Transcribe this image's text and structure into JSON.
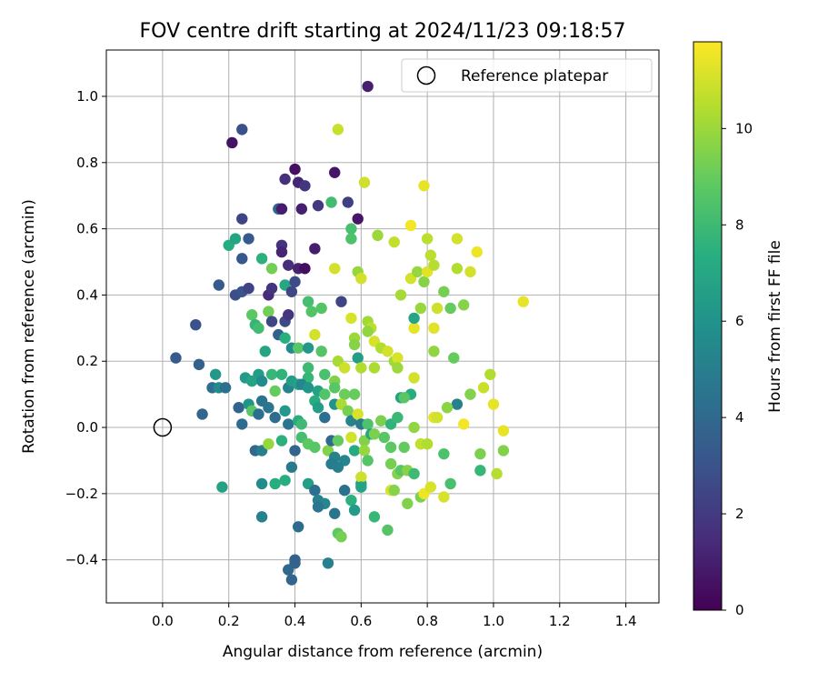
{
  "chart_data": {
    "type": "scatter",
    "title": "FOV centre drift starting at 2024/11/23 09:18:57",
    "xlabel": "Angular distance from reference (arcmin)",
    "ylabel": "Rotation from reference (arcmin)",
    "xlim": [
      -0.17,
      1.5
    ],
    "ylim": [
      -0.53,
      1.14
    ],
    "xticks": [
      0.0,
      0.2,
      0.4,
      0.6,
      0.8,
      1.0,
      1.2,
      1.4
    ],
    "xtick_labels": [
      "0.0",
      "0.2",
      "0.4",
      "0.6",
      "0.8",
      "1.0",
      "1.2",
      "1.4"
    ],
    "yticks": [
      -0.4,
      -0.2,
      0.0,
      0.2,
      0.4,
      0.6,
      0.8,
      1.0
    ],
    "ytick_labels": [
      "−0.4",
      "−0.2",
      "0.0",
      "0.2",
      "0.4",
      "0.6",
      "0.8",
      "1.0"
    ],
    "grid": true,
    "legend": {
      "placement": "top-right",
      "entries": [
        "Reference platepar"
      ]
    },
    "reference_point": {
      "x": 0.0,
      "y": 0.0,
      "label": "Reference platepar"
    },
    "colorbar": {
      "label": "Hours from first FF file",
      "range": [
        0,
        11.8
      ],
      "ticks": [
        0,
        2,
        4,
        6,
        8,
        10
      ],
      "tick_labels": [
        "0",
        "2",
        "4",
        "6",
        "8",
        "10"
      ],
      "colormap": "viridis"
    },
    "points": [
      [
        0.62,
        1.03,
        1.0
      ],
      [
        0.21,
        0.86,
        0.6
      ],
      [
        0.24,
        0.9,
        2.9
      ],
      [
        0.53,
        0.9,
        10.8
      ],
      [
        0.4,
        0.78,
        0.5
      ],
      [
        0.52,
        0.77,
        0.7
      ],
      [
        0.37,
        0.75,
        1.6
      ],
      [
        0.41,
        0.74,
        1.2
      ],
      [
        0.43,
        0.73,
        1.8
      ],
      [
        0.61,
        0.74,
        10.9
      ],
      [
        0.79,
        0.73,
        11.4
      ],
      [
        0.47,
        0.67,
        1.9
      ],
      [
        0.51,
        0.68,
        8.1
      ],
      [
        0.56,
        0.68,
        2.2
      ],
      [
        0.35,
        0.66,
        4.0
      ],
      [
        0.36,
        0.66,
        0.9
      ],
      [
        0.42,
        0.66,
        1.0
      ],
      [
        0.59,
        0.63,
        0.7
      ],
      [
        0.24,
        0.63,
        2.4
      ],
      [
        0.57,
        0.6,
        8.3
      ],
      [
        0.75,
        0.61,
        11.6
      ],
      [
        0.57,
        0.57,
        8.4
      ],
      [
        0.2,
        0.55,
        7.2
      ],
      [
        0.22,
        0.57,
        6.9
      ],
      [
        0.26,
        0.57,
        3.3
      ],
      [
        0.36,
        0.55,
        1.7
      ],
      [
        0.36,
        0.53,
        1.2
      ],
      [
        0.46,
        0.54,
        0.9
      ],
      [
        0.65,
        0.58,
        10.0
      ],
      [
        0.7,
        0.56,
        10.7
      ],
      [
        0.8,
        0.57,
        10.6
      ],
      [
        0.81,
        0.52,
        10.6
      ],
      [
        0.89,
        0.57,
        11.0
      ],
      [
        0.95,
        0.53,
        11.5
      ],
      [
        0.24,
        0.51,
        3.2
      ],
      [
        0.3,
        0.51,
        7.5
      ],
      [
        0.33,
        0.48,
        9.2
      ],
      [
        0.38,
        0.49,
        1.6
      ],
      [
        0.41,
        0.48,
        1.1
      ],
      [
        0.43,
        0.48,
        0.4
      ],
      [
        0.52,
        0.48,
        11.0
      ],
      [
        0.59,
        0.47,
        9.9
      ],
      [
        0.6,
        0.45,
        11.0
      ],
      [
        0.75,
        0.45,
        11.0
      ],
      [
        0.77,
        0.47,
        9.9
      ],
      [
        0.79,
        0.44,
        9.6
      ],
      [
        0.8,
        0.47,
        11.3
      ],
      [
        0.82,
        0.49,
        10.5
      ],
      [
        0.89,
        0.48,
        10.4
      ],
      [
        0.93,
        0.47,
        11.0
      ],
      [
        0.17,
        0.43,
        3.3
      ],
      [
        0.22,
        0.4,
        2.8
      ],
      [
        0.24,
        0.41,
        3.0
      ],
      [
        0.26,
        0.42,
        2.4
      ],
      [
        0.32,
        0.4,
        1.4
      ],
      [
        0.33,
        0.42,
        1.8
      ],
      [
        0.37,
        0.43,
        7.0
      ],
      [
        0.39,
        0.41,
        2.5
      ],
      [
        0.4,
        0.44,
        2.7
      ],
      [
        0.44,
        0.38,
        8.2
      ],
      [
        0.48,
        0.36,
        8.6
      ],
      [
        0.54,
        0.38,
        2.4
      ],
      [
        0.72,
        0.4,
        10.2
      ],
      [
        0.78,
        0.36,
        9.9
      ],
      [
        0.83,
        0.36,
        10.9
      ],
      [
        0.85,
        0.41,
        9.3
      ],
      [
        0.87,
        0.36,
        9.0
      ],
      [
        0.91,
        0.37,
        9.6
      ],
      [
        1.09,
        0.38,
        11.4
      ],
      [
        0.1,
        0.31,
        3.0
      ],
      [
        0.27,
        0.34,
        8.8
      ],
      [
        0.32,
        0.35,
        9.2
      ],
      [
        0.33,
        0.32,
        2.5
      ],
      [
        0.37,
        0.32,
        2.5
      ],
      [
        0.38,
        0.34,
        1.8
      ],
      [
        0.45,
        0.35,
        8.5
      ],
      [
        0.57,
        0.33,
        11.1
      ],
      [
        0.62,
        0.32,
        10.1
      ],
      [
        0.63,
        0.3,
        10.6
      ],
      [
        0.28,
        0.31,
        7.7
      ],
      [
        0.29,
        0.3,
        8.1
      ],
      [
        0.35,
        0.28,
        3.6
      ],
      [
        0.37,
        0.27,
        7.4
      ],
      [
        0.39,
        0.24,
        5.6
      ],
      [
        0.41,
        0.24,
        8.7
      ],
      [
        0.44,
        0.24,
        6.2
      ],
      [
        0.46,
        0.28,
        11.0
      ],
      [
        0.48,
        0.23,
        8.6
      ],
      [
        0.53,
        0.2,
        10.2
      ],
      [
        0.58,
        0.27,
        10.0
      ],
      [
        0.58,
        0.25,
        9.6
      ],
      [
        0.59,
        0.21,
        6.5
      ],
      [
        0.62,
        0.29,
        9.8
      ],
      [
        0.64,
        0.26,
        11.1
      ],
      [
        0.66,
        0.24,
        10.4
      ],
      [
        0.68,
        0.23,
        11.0
      ],
      [
        0.7,
        0.2,
        10.1
      ],
      [
        0.71,
        0.21,
        11.1
      ],
      [
        0.76,
        0.3,
        11.4
      ],
      [
        0.76,
        0.33,
        6.8
      ],
      [
        0.82,
        0.3,
        11.3
      ],
      [
        0.82,
        0.23,
        9.8
      ],
      [
        0.88,
        0.21,
        9.0
      ],
      [
        0.04,
        0.21,
        3.3
      ],
      [
        0.11,
        0.19,
        3.6
      ],
      [
        0.16,
        0.16,
        6.2
      ],
      [
        0.25,
        0.15,
        6.3
      ],
      [
        0.29,
        0.16,
        6.5
      ],
      [
        0.31,
        0.23,
        6.9
      ],
      [
        0.33,
        0.16,
        7.8
      ],
      [
        0.36,
        0.16,
        7.6
      ],
      [
        0.38,
        0.12,
        5.2
      ],
      [
        0.39,
        0.14,
        6.5
      ],
      [
        0.41,
        0.13,
        6.7
      ],
      [
        0.44,
        0.18,
        8.0
      ],
      [
        0.44,
        0.15,
        7.8
      ],
      [
        0.49,
        0.16,
        8.3
      ],
      [
        0.52,
        0.14,
        9.5
      ],
      [
        0.55,
        0.18,
        10.9
      ],
      [
        0.6,
        0.18,
        10.4
      ],
      [
        0.64,
        0.18,
        10.3
      ],
      [
        0.71,
        0.18,
        10.0
      ],
      [
        0.76,
        0.15,
        11.0
      ],
      [
        0.99,
        0.16,
        10.4
      ],
      [
        0.15,
        0.12,
        4.2
      ],
      [
        0.17,
        0.12,
        5.5
      ],
      [
        0.19,
        0.12,
        4.3
      ],
      [
        0.27,
        0.14,
        6.8
      ],
      [
        0.3,
        0.14,
        5.6
      ],
      [
        0.34,
        0.11,
        9.0
      ],
      [
        0.42,
        0.13,
        5.4
      ],
      [
        0.44,
        0.12,
        6.1
      ],
      [
        0.47,
        0.11,
        6.7
      ],
      [
        0.49,
        0.1,
        8.5
      ],
      [
        0.52,
        0.12,
        8.7
      ],
      [
        0.55,
        0.1,
        9.1
      ],
      [
        0.58,
        0.1,
        9.0
      ],
      [
        0.72,
        0.09,
        6.8
      ],
      [
        0.75,
        0.1,
        7.3
      ],
      [
        0.89,
        0.07,
        5.1
      ],
      [
        0.93,
        0.1,
        9.5
      ],
      [
        0.97,
        0.12,
        10.8
      ],
      [
        0.23,
        0.06,
        3.8
      ],
      [
        0.26,
        0.07,
        6.1
      ],
      [
        0.27,
        0.05,
        8.7
      ],
      [
        0.29,
        0.04,
        4.3
      ],
      [
        0.3,
        0.08,
        4.5
      ],
      [
        0.32,
        0.06,
        4.6
      ],
      [
        0.34,
        0.03,
        4.2
      ],
      [
        0.37,
        0.05,
        6.3
      ],
      [
        0.38,
        0.01,
        4.6
      ],
      [
        0.41,
        0.02,
        7.2
      ],
      [
        0.42,
        0.01,
        8.0
      ],
      [
        0.42,
        -0.03,
        8.2
      ],
      [
        0.46,
        0.08,
        7.2
      ],
      [
        0.47,
        0.06,
        6.5
      ],
      [
        0.49,
        0.03,
        4.3
      ],
      [
        0.52,
        0.07,
        6.0
      ],
      [
        0.54,
        0.07,
        10.3
      ],
      [
        0.56,
        0.05,
        9.3
      ],
      [
        0.57,
        0.02,
        5.2
      ],
      [
        0.59,
        0.04,
        11.1
      ],
      [
        0.6,
        0.01,
        4.8
      ],
      [
        0.62,
        0.01,
        8.4
      ],
      [
        0.66,
        0.02,
        9.4
      ],
      [
        0.69,
        0.01,
        7.6
      ],
      [
        0.71,
        0.03,
        7.9
      ],
      [
        0.73,
        0.09,
        8.7
      ],
      [
        0.76,
        0.0,
        9.8
      ],
      [
        0.82,
        0.03,
        11.3
      ],
      [
        0.83,
        0.03,
        11.0
      ],
      [
        0.86,
        0.06,
        9.7
      ],
      [
        0.91,
        0.01,
        11.6
      ],
      [
        1.0,
        0.07,
        11.4
      ],
      [
        1.03,
        -0.01,
        11.4
      ],
      [
        0.12,
        0.04,
        3.9
      ],
      [
        0.24,
        0.01,
        4.1
      ],
      [
        0.28,
        -0.07,
        4.0
      ],
      [
        0.3,
        -0.07,
        5.0
      ],
      [
        0.32,
        -0.05,
        9.9
      ],
      [
        0.36,
        -0.04,
        7.5
      ],
      [
        0.4,
        -0.07,
        3.8
      ],
      [
        0.44,
        -0.05,
        8.8
      ],
      [
        0.46,
        -0.06,
        8.7
      ],
      [
        0.5,
        -0.07,
        9.5
      ],
      [
        0.51,
        -0.04,
        4.0
      ],
      [
        0.52,
        -0.09,
        5.2
      ],
      [
        0.53,
        -0.04,
        8.9
      ],
      [
        0.55,
        -0.1,
        5.4
      ],
      [
        0.57,
        -0.03,
        11.0
      ],
      [
        0.58,
        -0.07,
        7.1
      ],
      [
        0.61,
        -0.04,
        9.5
      ],
      [
        0.61,
        -0.07,
        9.9
      ],
      [
        0.63,
        -0.02,
        6.9
      ],
      [
        0.64,
        -0.02,
        9.4
      ],
      [
        0.67,
        -0.03,
        8.7
      ],
      [
        0.69,
        -0.06,
        8.8
      ],
      [
        0.73,
        -0.06,
        8.9
      ],
      [
        0.78,
        -0.05,
        10.7
      ],
      [
        0.8,
        -0.05,
        10.4
      ],
      [
        0.85,
        -0.08,
        8.4
      ],
      [
        0.96,
        -0.08,
        9.4
      ],
      [
        0.96,
        -0.13,
        7.8
      ],
      [
        1.01,
        -0.14,
        10.5
      ],
      [
        1.03,
        -0.07,
        9.5
      ],
      [
        0.18,
        -0.18,
        6.7
      ],
      [
        0.3,
        -0.17,
        5.6
      ],
      [
        0.34,
        -0.17,
        7.3
      ],
      [
        0.37,
        -0.16,
        7.3
      ],
      [
        0.39,
        -0.12,
        4.8
      ],
      [
        0.44,
        -0.17,
        6.6
      ],
      [
        0.46,
        -0.19,
        4.3
      ],
      [
        0.47,
        -0.22,
        5.1
      ],
      [
        0.49,
        -0.23,
        5.4
      ],
      [
        0.51,
        -0.11,
        4.9
      ],
      [
        0.53,
        -0.12,
        5.0
      ],
      [
        0.55,
        -0.19,
        4.4
      ],
      [
        0.57,
        -0.22,
        7.5
      ],
      [
        0.6,
        -0.17,
        6.7
      ],
      [
        0.6,
        -0.15,
        10.9
      ],
      [
        0.6,
        -0.18,
        6.8
      ],
      [
        0.62,
        -0.1,
        8.6
      ],
      [
        0.69,
        -0.11,
        9.3
      ],
      [
        0.69,
        -0.19,
        11.1
      ],
      [
        0.7,
        -0.19,
        9.6
      ],
      [
        0.71,
        -0.14,
        9.6
      ],
      [
        0.72,
        -0.13,
        8.7
      ],
      [
        0.74,
        -0.13,
        9.6
      ],
      [
        0.74,
        -0.23,
        9.5
      ],
      [
        0.76,
        -0.14,
        8.0
      ],
      [
        0.78,
        -0.21,
        9.4
      ],
      [
        0.79,
        -0.2,
        11.5
      ],
      [
        0.81,
        -0.18,
        11.1
      ],
      [
        0.85,
        -0.21,
        11.1
      ],
      [
        0.87,
        -0.17,
        8.3
      ],
      [
        0.3,
        -0.27,
        5.1
      ],
      [
        0.41,
        -0.3,
        4.1
      ],
      [
        0.47,
        -0.24,
        4.6
      ],
      [
        0.52,
        -0.26,
        4.5
      ],
      [
        0.53,
        -0.32,
        8.8
      ],
      [
        0.54,
        -0.33,
        9.3
      ],
      [
        0.58,
        -0.25,
        6.4
      ],
      [
        0.64,
        -0.27,
        7.8
      ],
      [
        0.68,
        -0.31,
        8.6
      ],
      [
        0.38,
        -0.43,
        4.0
      ],
      [
        0.4,
        -0.41,
        3.8
      ],
      [
        0.4,
        -0.4,
        3.7
      ],
      [
        0.5,
        -0.41,
        5.1
      ],
      [
        0.39,
        -0.46,
        3.8
      ]
    ]
  }
}
